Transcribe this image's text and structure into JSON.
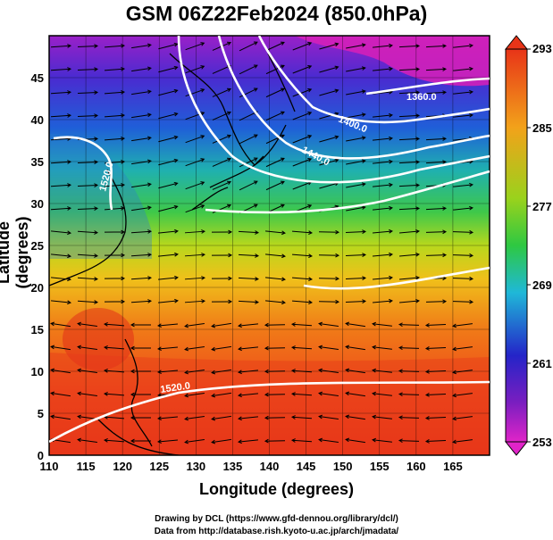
{
  "title": "GSM 06Z22Feb2024 (850.0hPa)",
  "xlabel": "Longitude (degrees)",
  "ylabel": "Latitude (degrees)",
  "credit_line1": "Drawing by DCL (https://www.gfd-dennou.org/library/dcl/)",
  "credit_line2": "Data from http://database.rish.kyoto-u.ac.jp/arch/jmadata/",
  "chart_data": {
    "type": "heatmap",
    "variable": "temperature",
    "x_ticks": [
      110,
      115,
      120,
      125,
      130,
      135,
      140,
      145,
      150,
      155,
      160,
      165
    ],
    "y_ticks": [
      0,
      5,
      10,
      15,
      20,
      25,
      30,
      35,
      40,
      45
    ],
    "xlim": [
      110,
      170
    ],
    "ylim": [
      0,
      50
    ],
    "colorbar": {
      "ticks": [
        "293",
        "285",
        "277",
        "269",
        "261",
        "253"
      ],
      "min": 253,
      "max": 293
    },
    "contour_labels": [
      "1360.0",
      "1400.0",
      "1440.0",
      "1520.0",
      "1520.0"
    ],
    "grid": true
  }
}
